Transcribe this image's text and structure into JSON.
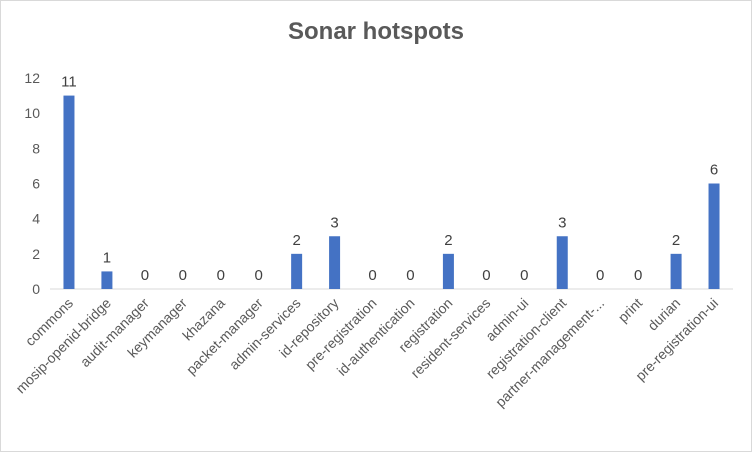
{
  "chart_data": {
    "type": "bar",
    "title": "Sonar hotspots",
    "xlabel": "",
    "ylabel": "",
    "ylim": [
      0,
      12
    ],
    "yticks": [
      0,
      2,
      4,
      6,
      8,
      10,
      12
    ],
    "grid": false,
    "legend": "none",
    "bar_color": "#4472c4",
    "categories": [
      "commons",
      "mosip-openid-bridge",
      "audit-manager",
      "keymanager",
      "khazana",
      "packet-manager",
      "admin-services",
      "id-repository",
      "pre-registration",
      "id-authentication",
      "registration",
      "resident-services",
      "admin-ui",
      "registration-client",
      "partner-management-...",
      "print",
      "durian",
      "pre-registration-ui"
    ],
    "values": [
      11,
      1,
      0,
      0,
      0,
      0,
      2,
      3,
      0,
      0,
      2,
      0,
      0,
      3,
      0,
      0,
      2,
      6
    ]
  }
}
